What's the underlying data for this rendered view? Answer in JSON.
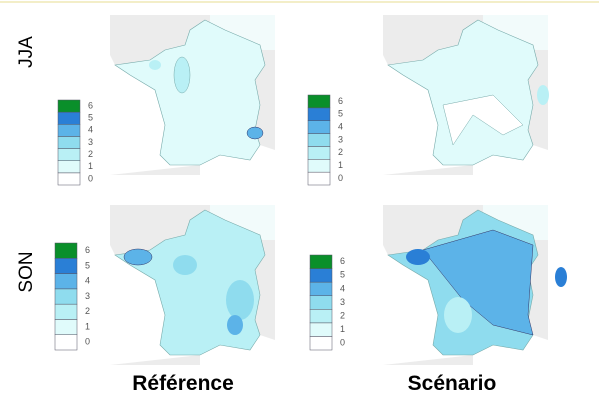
{
  "rows": [
    "JJA",
    "SON"
  ],
  "columns": [
    "Référence",
    "Scénario"
  ],
  "legends": [
    {
      "ticks": [
        0,
        1,
        2,
        3,
        4,
        5,
        6
      ],
      "colors": [
        "#ffffff",
        "#e0fbfb",
        "#b9f0f5",
        "#8fdcee",
        "#5cb3e8",
        "#2a7fd6",
        "#0a8f2a"
      ]
    },
    {
      "ticks": [
        0,
        1,
        2,
        3,
        4,
        5,
        6
      ],
      "colors": [
        "#ffffff",
        "#e0fbfb",
        "#b9f0f5",
        "#8fdcee",
        "#5cb3e8",
        "#2a7fd6",
        "#0a8f2a"
      ]
    },
    {
      "ticks": [
        0,
        1,
        2,
        3,
        4,
        5,
        6
      ],
      "colors": [
        "#ffffff",
        "#e0fbfb",
        "#b9f0f5",
        "#8fdcee",
        "#5cb3e8",
        "#2a7fd6",
        "#0a8f2a"
      ]
    },
    {
      "ticks": [
        0,
        1,
        2,
        3,
        4,
        5,
        6
      ],
      "colors": [
        "#ffffff",
        "#e0fbfb",
        "#b9f0f5",
        "#8fdcee",
        "#5cb3e8",
        "#2a7fd6",
        "#0a8f2a"
      ]
    }
  ]
}
